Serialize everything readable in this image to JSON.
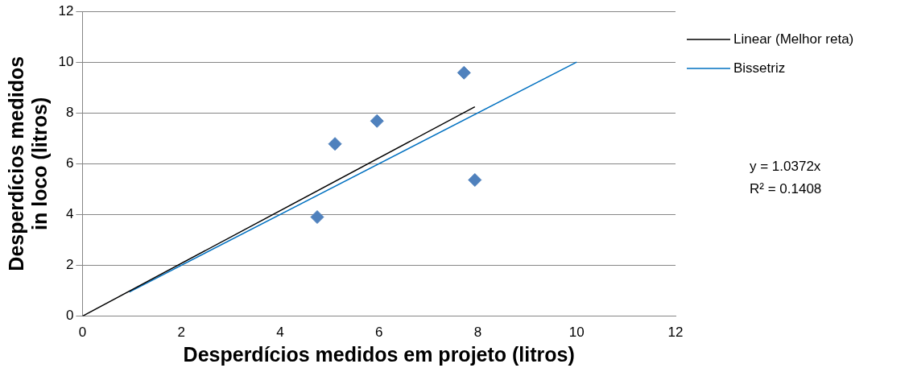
{
  "chart_data": {
    "type": "scatter",
    "xlabel": "Desperdícios medidos em projeto (litros)",
    "ylabel": "Desperdícios medidos in loco (litros)",
    "x": [
      4.75,
      5.11,
      5.96,
      7.72,
      7.94
    ],
    "values": [
      3.9,
      6.78,
      7.68,
      9.58,
      5.36
    ],
    "color": "#4f81bd",
    "marker": "diamond",
    "series": [
      {
        "name": "Linear (Melhor reta)",
        "type": "line",
        "color": "#000000",
        "x": [
          0,
          7.94
        ],
        "values": [
          0,
          8.24
        ],
        "marker": "none"
      },
      {
        "name": "Bissetriz",
        "type": "line",
        "color": "#0070c0",
        "x": [
          0.95,
          10
        ],
        "values": [
          0.95,
          10
        ],
        "marker": "none"
      }
    ],
    "xlim": [
      0,
      12
    ],
    "xticks": [
      0,
      2,
      4,
      6,
      8,
      10,
      12
    ],
    "ylim": [
      0,
      12
    ],
    "yticks": [
      0,
      2,
      4,
      6,
      8,
      10,
      12
    ],
    "grid": "y",
    "legend": "right",
    "annotations": [
      "y = 1.0372x",
      "R² = 0.1408"
    ]
  }
}
